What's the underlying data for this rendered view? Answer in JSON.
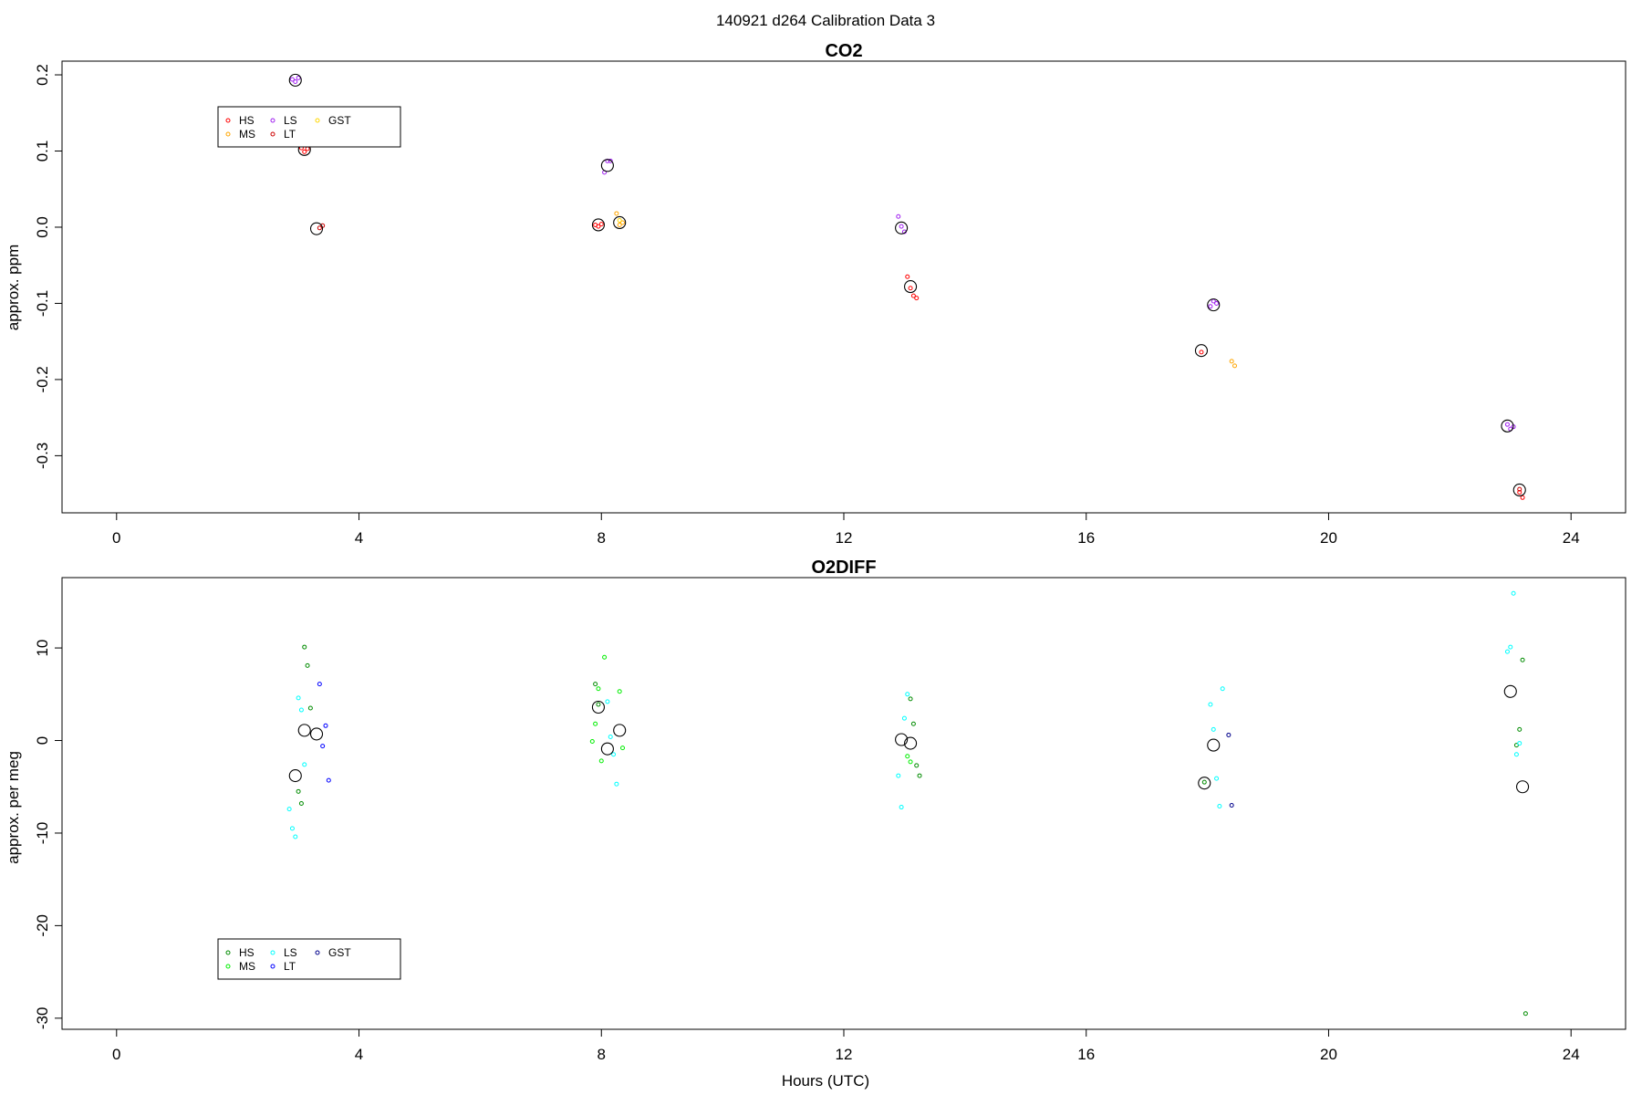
{
  "figure": {
    "main_title": "140921   d264   Calibration Data 3",
    "xlabel": "Hours (UTC)"
  },
  "chart_data": [
    {
      "type": "scatter",
      "title": "CO2",
      "xlabel": "",
      "ylabel": "approx. ppm",
      "xlim": [
        -0.9,
        24.9
      ],
      "ylim": [
        -0.375,
        0.218
      ],
      "xticks": [
        0,
        4,
        8,
        12,
        16,
        20,
        24
      ],
      "yticks": [
        -0.3,
        -0.2,
        -0.1,
        0.0,
        0.1,
        0.2
      ],
      "ytick_labels": [
        "-0.3",
        "-0.2",
        "-0.1",
        "0.0",
        "0.1",
        "0.2"
      ],
      "legend": {
        "placement": "top-left",
        "entries": [
          {
            "name": "HS",
            "color": "#ff0000"
          },
          {
            "name": "MS",
            "color": "#ffa500"
          },
          {
            "name": "LS",
            "color": "#a020f0"
          },
          {
            "name": "LT",
            "color": "#cd0000"
          },
          {
            "name": "GST",
            "color": "#ffd700"
          }
        ]
      },
      "series": [
        {
          "name": "HS",
          "color": "#ff0000",
          "points": [
            [
              3.05,
              0.104
            ],
            [
              3.1,
              0.099
            ],
            [
              3.15,
              0.103
            ],
            [
              7.9,
              0.003
            ],
            [
              7.95,
              0.001
            ],
            [
              8.0,
              0.004
            ],
            [
              13.05,
              -0.065
            ],
            [
              13.1,
              -0.08
            ],
            [
              13.15,
              -0.09
            ],
            [
              13.2,
              -0.093
            ],
            [
              17.9,
              -0.164
            ],
            [
              23.15,
              -0.348
            ],
            [
              23.2,
              -0.355
            ]
          ]
        },
        {
          "name": "MS",
          "color": "#ffa500",
          "points": [
            [
              8.25,
              0.018
            ],
            [
              8.3,
              0.003
            ],
            [
              8.35,
              0.006
            ],
            [
              18.4,
              -0.176
            ],
            [
              18.45,
              -0.182
            ]
          ]
        },
        {
          "name": "LS",
          "color": "#a020f0",
          "points": [
            [
              2.9,
              0.194
            ],
            [
              2.95,
              0.191
            ],
            [
              3.0,
              0.196
            ],
            [
              8.05,
              0.072
            ],
            [
              8.1,
              0.087
            ],
            [
              8.15,
              0.087
            ],
            [
              12.9,
              0.014
            ],
            [
              12.95,
              0.001
            ],
            [
              13.0,
              -0.006
            ],
            [
              18.05,
              -0.104
            ],
            [
              18.1,
              -0.097
            ],
            [
              18.15,
              -0.1
            ],
            [
              22.95,
              -0.259
            ],
            [
              23.0,
              -0.265
            ],
            [
              23.05,
              -0.262
            ]
          ]
        },
        {
          "name": "LT",
          "color": "#cd0000",
          "points": [
            [
              3.35,
              -0.001
            ],
            [
              3.4,
              0.002
            ],
            [
              23.15,
              -0.344
            ]
          ]
        },
        {
          "name": "GST",
          "color": "#ffd700",
          "points": [
            [
              8.3,
              0.009
            ]
          ]
        },
        {
          "name": "Mean",
          "color": "#000000",
          "marker": "large-open-circle",
          "points": [
            [
              2.95,
              0.193
            ],
            [
              3.1,
              0.102
            ],
            [
              3.3,
              -0.002
            ],
            [
              7.95,
              0.003
            ],
            [
              8.1,
              0.081
            ],
            [
              8.3,
              0.006
            ],
            [
              12.95,
              -0.001
            ],
            [
              13.1,
              -0.078
            ],
            [
              17.9,
              -0.162
            ],
            [
              18.1,
              -0.102
            ],
            [
              22.95,
              -0.261
            ],
            [
              23.15,
              -0.345
            ]
          ]
        }
      ]
    },
    {
      "type": "scatter",
      "title": "O2DIFF",
      "xlabel": "Hours (UTC)",
      "ylabel": "approx. per meg",
      "xlim": [
        -0.9,
        24.9
      ],
      "ylim": [
        -31.2,
        17.6
      ],
      "xticks": [
        0,
        4,
        8,
        12,
        16,
        20,
        24
      ],
      "yticks": [
        -30,
        -20,
        -10,
        0,
        10
      ],
      "ytick_labels": [
        "-30",
        "-20",
        "-10",
        "0",
        "10"
      ],
      "legend": {
        "placement": "bottom-left",
        "entries": [
          {
            "name": "HS",
            "color": "#008b00"
          },
          {
            "name": "MS",
            "color": "#00ee00"
          },
          {
            "name": "LS",
            "color": "#00ffff"
          },
          {
            "name": "LT",
            "color": "#0000ff"
          },
          {
            "name": "GST",
            "color": "#00008b"
          }
        ]
      },
      "series": [
        {
          "name": "HS",
          "color": "#008b00",
          "points": [
            [
              3.0,
              -5.5
            ],
            [
              3.05,
              -6.8
            ],
            [
              3.1,
              10.1
            ],
            [
              3.15,
              8.1
            ],
            [
              3.2,
              3.5
            ],
            [
              7.9,
              6.1
            ],
            [
              7.95,
              3.9
            ],
            [
              13.1,
              4.5
            ],
            [
              13.15,
              1.8
            ],
            [
              13.2,
              -2.7
            ],
            [
              13.25,
              -3.8
            ],
            [
              17.95,
              -4.5
            ],
            [
              23.1,
              -0.5
            ],
            [
              23.15,
              1.2
            ],
            [
              23.2,
              8.7
            ],
            [
              23.25,
              -29.5
            ]
          ]
        },
        {
          "name": "MS",
          "color": "#00ee00",
          "points": [
            [
              7.85,
              -0.1
            ],
            [
              7.9,
              1.8
            ],
            [
              7.95,
              5.6
            ],
            [
              8.0,
              -2.2
            ],
            [
              8.05,
              9.0
            ],
            [
              8.3,
              5.3
            ],
            [
              8.35,
              -0.8
            ],
            [
              13.05,
              -1.7
            ],
            [
              13.1,
              -2.3
            ]
          ]
        },
        {
          "name": "LS",
          "color": "#00ffff",
          "points": [
            [
              2.85,
              -7.4
            ],
            [
              2.9,
              -9.5
            ],
            [
              2.95,
              -10.4
            ],
            [
              3.0,
              4.6
            ],
            [
              3.05,
              3.3
            ],
            [
              3.1,
              -2.6
            ],
            [
              8.1,
              4.2
            ],
            [
              8.15,
              0.4
            ],
            [
              8.2,
              -1.5
            ],
            [
              8.25,
              -4.7
            ],
            [
              12.9,
              -3.8
            ],
            [
              12.95,
              -7.2
            ],
            [
              13.0,
              2.4
            ],
            [
              13.05,
              5.0
            ],
            [
              18.05,
              3.9
            ],
            [
              18.1,
              1.2
            ],
            [
              18.15,
              -4.1
            ],
            [
              18.2,
              -7.1
            ],
            [
              18.25,
              5.6
            ],
            [
              22.95,
              9.6
            ],
            [
              23.0,
              10.1
            ],
            [
              23.05,
              15.9
            ],
            [
              23.1,
              -1.5
            ],
            [
              23.15,
              -0.3
            ]
          ]
        },
        {
          "name": "LT",
          "color": "#0000ff",
          "points": [
            [
              3.35,
              6.1
            ],
            [
              3.4,
              -0.6
            ],
            [
              3.45,
              1.6
            ],
            [
              3.5,
              -4.3
            ]
          ]
        },
        {
          "name": "GST",
          "color": "#00008b",
          "points": [
            [
              18.35,
              0.6
            ],
            [
              18.4,
              -7.0
            ]
          ]
        },
        {
          "name": "Mean",
          "color": "#000000",
          "marker": "large-open-circle",
          "points": [
            [
              2.95,
              -3.8
            ],
            [
              3.1,
              1.1
            ],
            [
              3.3,
              0.7
            ],
            [
              7.95,
              3.6
            ],
            [
              8.1,
              -0.9
            ],
            [
              8.3,
              1.1
            ],
            [
              12.95,
              0.1
            ],
            [
              13.1,
              -0.3
            ],
            [
              17.95,
              -4.6
            ],
            [
              18.1,
              -0.5
            ],
            [
              23.0,
              5.3
            ],
            [
              23.2,
              -5.0
            ]
          ]
        }
      ]
    }
  ]
}
